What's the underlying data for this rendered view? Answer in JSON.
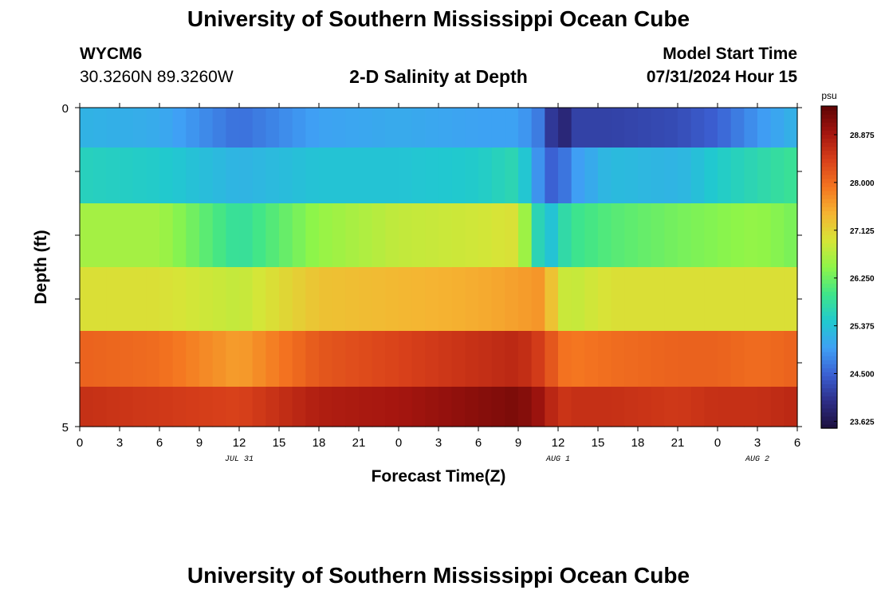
{
  "header": {
    "title": "University of Southern Mississippi Ocean Cube",
    "station_id": "WYCM6",
    "coordinates": "30.3260N  89.3260W",
    "plot_title": "2-D Salinity at Depth",
    "model_start_label": "Model Start Time",
    "model_start_value": "07/31/2024 Hour 15"
  },
  "footer": {
    "title": "University of Southern Mississippi Ocean Cube"
  },
  "chart_data": {
    "type": "heatmap",
    "title": "2-D Salinity at Depth",
    "xlabel": "Forecast Time(Z)",
    "ylabel": "Depth (ft)",
    "x_ticks": [
      "0",
      "3",
      "6",
      "9",
      "12",
      "15",
      "18",
      "21",
      "0",
      "3",
      "6",
      "9",
      "12",
      "15",
      "18",
      "21",
      "0",
      "3",
      "6"
    ],
    "x_range_hours": [
      0,
      54
    ],
    "y_range_ft": [
      0,
      5
    ],
    "y_tick_labels": [
      "0",
      "5"
    ],
    "date_labels": [
      {
        "label": "JUL 31",
        "hour": 12
      },
      {
        "label": "AUG 1",
        "hour": 36
      },
      {
        "label": "AUG 2",
        "hour": 51
      }
    ],
    "depth_layers_ft": [
      0.25,
      1.0,
      2.0,
      3.0,
      4.0,
      4.75
    ],
    "time_hours": [
      0,
      6,
      12,
      18,
      24,
      30,
      33,
      35,
      36,
      37,
      40,
      45,
      48,
      51,
      54
    ],
    "salinity": [
      [
        25.2,
        25.1,
        24.6,
        25.0,
        25.1,
        25.0,
        25.0,
        24.6,
        23.6,
        24.2,
        24.2,
        24.3,
        24.5,
        24.9,
        25.2
      ],
      [
        25.6,
        25.5,
        25.2,
        25.4,
        25.4,
        25.5,
        25.7,
        24.6,
        24.4,
        24.9,
        25.3,
        25.2,
        25.5,
        25.7,
        25.9
      ],
      [
        26.6,
        26.6,
        25.8,
        26.5,
        26.8,
        26.9,
        27.0,
        25.2,
        25.6,
        25.9,
        26.1,
        26.3,
        26.4,
        26.5,
        26.3
      ],
      [
        27.0,
        27.0,
        26.8,
        27.3,
        27.4,
        27.5,
        27.6,
        27.7,
        26.9,
        26.8,
        27.0,
        27.0,
        27.0,
        27.0,
        27.0
      ],
      [
        28.1,
        28.0,
        27.6,
        28.2,
        28.4,
        28.6,
        28.7,
        28.4,
        28.0,
        27.9,
        28.0,
        28.1,
        28.1,
        28.0,
        28.1
      ],
      [
        28.6,
        28.5,
        28.4,
        28.8,
        28.9,
        29.1,
        29.2,
        28.9,
        28.5,
        28.6,
        28.6,
        28.5,
        28.6,
        28.6,
        28.7
      ]
    ],
    "colorbar": {
      "unit": "psu",
      "min": 23.5,
      "max": 29.4,
      "tick_labels": [
        "23.625",
        "24.500",
        "25.375",
        "26.250",
        "27.125",
        "28.000",
        "28.875"
      ],
      "tick_values": [
        23.625,
        24.5,
        25.375,
        26.25,
        27.125,
        28.0,
        28.875
      ],
      "colors": [
        "#1c0f3d",
        "#2d2d86",
        "#3b5fd2",
        "#3fa0f5",
        "#20c9cf",
        "#3fe58a",
        "#8ef549",
        "#d6e537",
        "#f5b532",
        "#f47520",
        "#d8401a",
        "#a4150f",
        "#5e0505"
      ]
    }
  }
}
